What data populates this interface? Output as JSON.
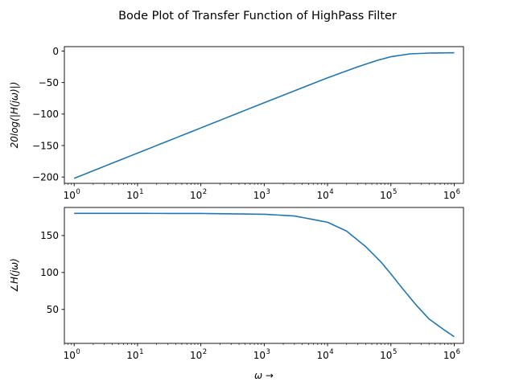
{
  "figure_title": "Bode Plot of Transfer Function of HighPass Filter",
  "colors": {
    "line": "#1f77b4"
  },
  "chart_data": [
    {
      "type": "line",
      "panel": "magnitude",
      "xscale": "log",
      "xlim": [
        0.7,
        1400000.0
      ],
      "ylim": [
        -210,
        7
      ],
      "xticks": [
        {
          "value": 1,
          "base": "10",
          "exp": "0"
        },
        {
          "value": 10,
          "base": "10",
          "exp": "1"
        },
        {
          "value": 100,
          "base": "10",
          "exp": "2"
        },
        {
          "value": 1000,
          "base": "10",
          "exp": "3"
        },
        {
          "value": 10000,
          "base": "10",
          "exp": "4"
        },
        {
          "value": 100000,
          "base": "10",
          "exp": "5"
        },
        {
          "value": 1000000,
          "base": "10",
          "exp": "6"
        }
      ],
      "yticks": [
        {
          "value": 0,
          "label": "0"
        },
        {
          "value": -50,
          "label": "−50"
        },
        {
          "value": -100,
          "label": "−100"
        },
        {
          "value": -150,
          "label": "−150"
        },
        {
          "value": -200,
          "label": "−200"
        }
      ],
      "ylabel": "20log(|H(jω)|)",
      "xlabel": "",
      "grid": false,
      "series": [
        {
          "x": [
            1,
            10,
            100,
            1000,
            10000,
            30000,
            60000,
            100000,
            200000,
            400000,
            1000000
          ],
          "y": [
            -202,
            -162,
            -122,
            -82,
            -42.5,
            -25,
            -15,
            -9,
            -4.5,
            -3.2,
            -2.7
          ]
        }
      ]
    },
    {
      "type": "line",
      "panel": "phase",
      "xscale": "log",
      "xlim": [
        0.7,
        1400000.0
      ],
      "ylim": [
        4,
        188
      ],
      "xticks": [
        {
          "value": 1,
          "base": "10",
          "exp": "0"
        },
        {
          "value": 10,
          "base": "10",
          "exp": "1"
        },
        {
          "value": 100,
          "base": "10",
          "exp": "2"
        },
        {
          "value": 1000,
          "base": "10",
          "exp": "3"
        },
        {
          "value": 10000,
          "base": "10",
          "exp": "4"
        },
        {
          "value": 100000,
          "base": "10",
          "exp": "5"
        },
        {
          "value": 1000000,
          "base": "10",
          "exp": "6"
        }
      ],
      "yticks": [
        {
          "value": 150,
          "label": "150"
        },
        {
          "value": 100,
          "label": "100"
        },
        {
          "value": 50,
          "label": "50"
        }
      ],
      "ylabel": "∠H(jω)",
      "xlabel": "ω →",
      "grid": false,
      "series": [
        {
          "x": [
            1,
            10,
            100,
            1000,
            3000,
            10000,
            20000,
            40000,
            70000,
            100000,
            150000,
            250000,
            400000,
            700000,
            1000000
          ],
          "y": [
            180,
            180,
            179.9,
            178.8,
            176.5,
            168,
            156,
            135,
            114,
            98,
            79,
            56,
            37,
            22,
            13
          ]
        }
      ]
    }
  ]
}
